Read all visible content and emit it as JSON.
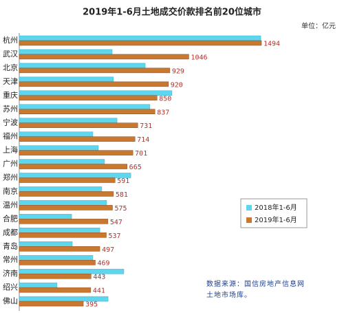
{
  "chart_data": {
    "type": "hbar",
    "title": "2019年1-6月土地成交价款排名前20位城市",
    "unit": "单位：亿元",
    "source": "数据来源：国信房地产信息网土地市场库。",
    "categories": [
      "杭州",
      "武汉",
      "北京",
      "天津",
      "重庆",
      "苏州",
      "宁波",
      "福州",
      "上海",
      "广州",
      "郑州",
      "南京",
      "温州",
      "合肥",
      "成都",
      "青岛",
      "常州",
      "济南",
      "绍兴",
      "佛山"
    ],
    "series": [
      {
        "name": "2018年1-6月",
        "color": "#5dd6ee",
        "values": [
          1490,
          573,
          777,
          581,
          942,
          806,
          603,
          454,
          488,
          526,
          688,
          509,
          539,
          323,
          497,
          327,
          454,
          645,
          233,
          548
        ]
      },
      {
        "name": "2019年1-6月",
        "color": "#c9782f",
        "values": [
          1494,
          1046,
          929,
          920,
          850,
          837,
          731,
          714,
          701,
          665,
          591,
          581,
          575,
          547,
          537,
          497,
          469,
          443,
          441,
          395
        ]
      }
    ],
    "legend": "lower right"
  }
}
